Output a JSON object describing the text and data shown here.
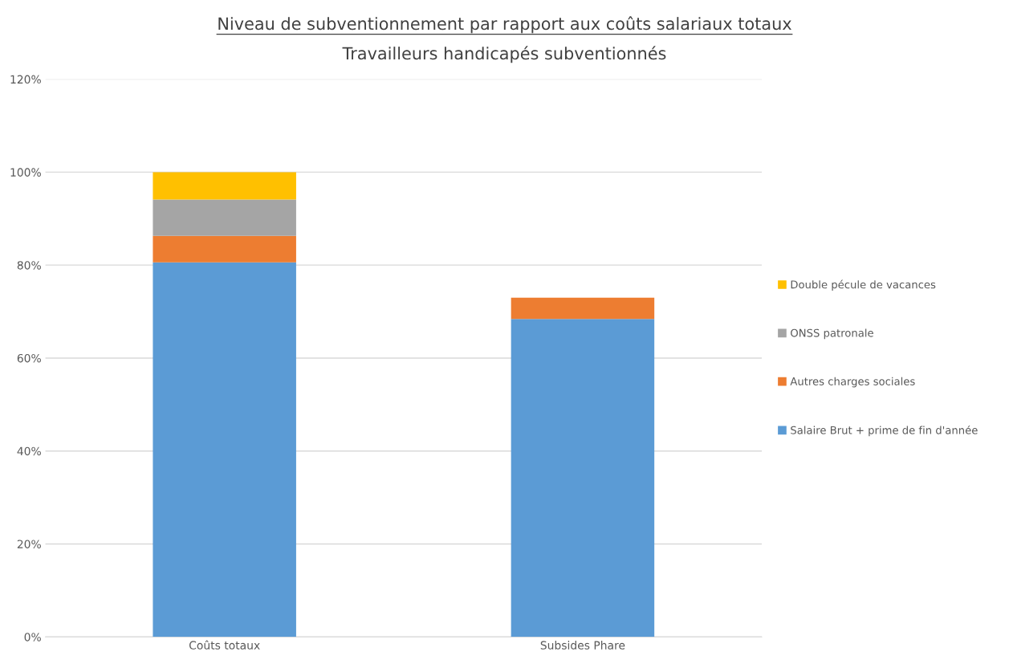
{
  "chart_data": {
    "type": "bar",
    "title": "Niveau de subventionnement par rapport aux coûts salariaux totaux",
    "subtitle": "Travailleurs handicapés subventionnés",
    "categories": [
      "Coûts totaux",
      "Subsides Phare"
    ],
    "stacked": true,
    "series": [
      {
        "name": "Salaire Brut + prime de fin d'année",
        "color": "#5b9bd5",
        "values": [
          80.6,
          68.4
        ]
      },
      {
        "name": "Autres charges sociales",
        "color": "#ed7d31",
        "values": [
          5.7,
          4.6
        ]
      },
      {
        "name": "ONSS patronale",
        "color": "#a5a5a5",
        "values": [
          7.8,
          null
        ]
      },
      {
        "name": "Double pécule de vacances",
        "color": "#ffc000",
        "values": [
          5.9,
          null
        ]
      }
    ],
    "ylim": [
      0,
      120
    ],
    "yticks": [
      {
        "value": 0,
        "label": "0%"
      },
      {
        "value": 20,
        "label": "20%"
      },
      {
        "value": 40,
        "label": "40%"
      },
      {
        "value": 60,
        "label": "60%"
      },
      {
        "value": 80,
        "label": "80%"
      },
      {
        "value": 100,
        "label": "100%"
      },
      {
        "value": 120,
        "label": "120%"
      }
    ],
    "grid": "y",
    "legend": "right"
  }
}
